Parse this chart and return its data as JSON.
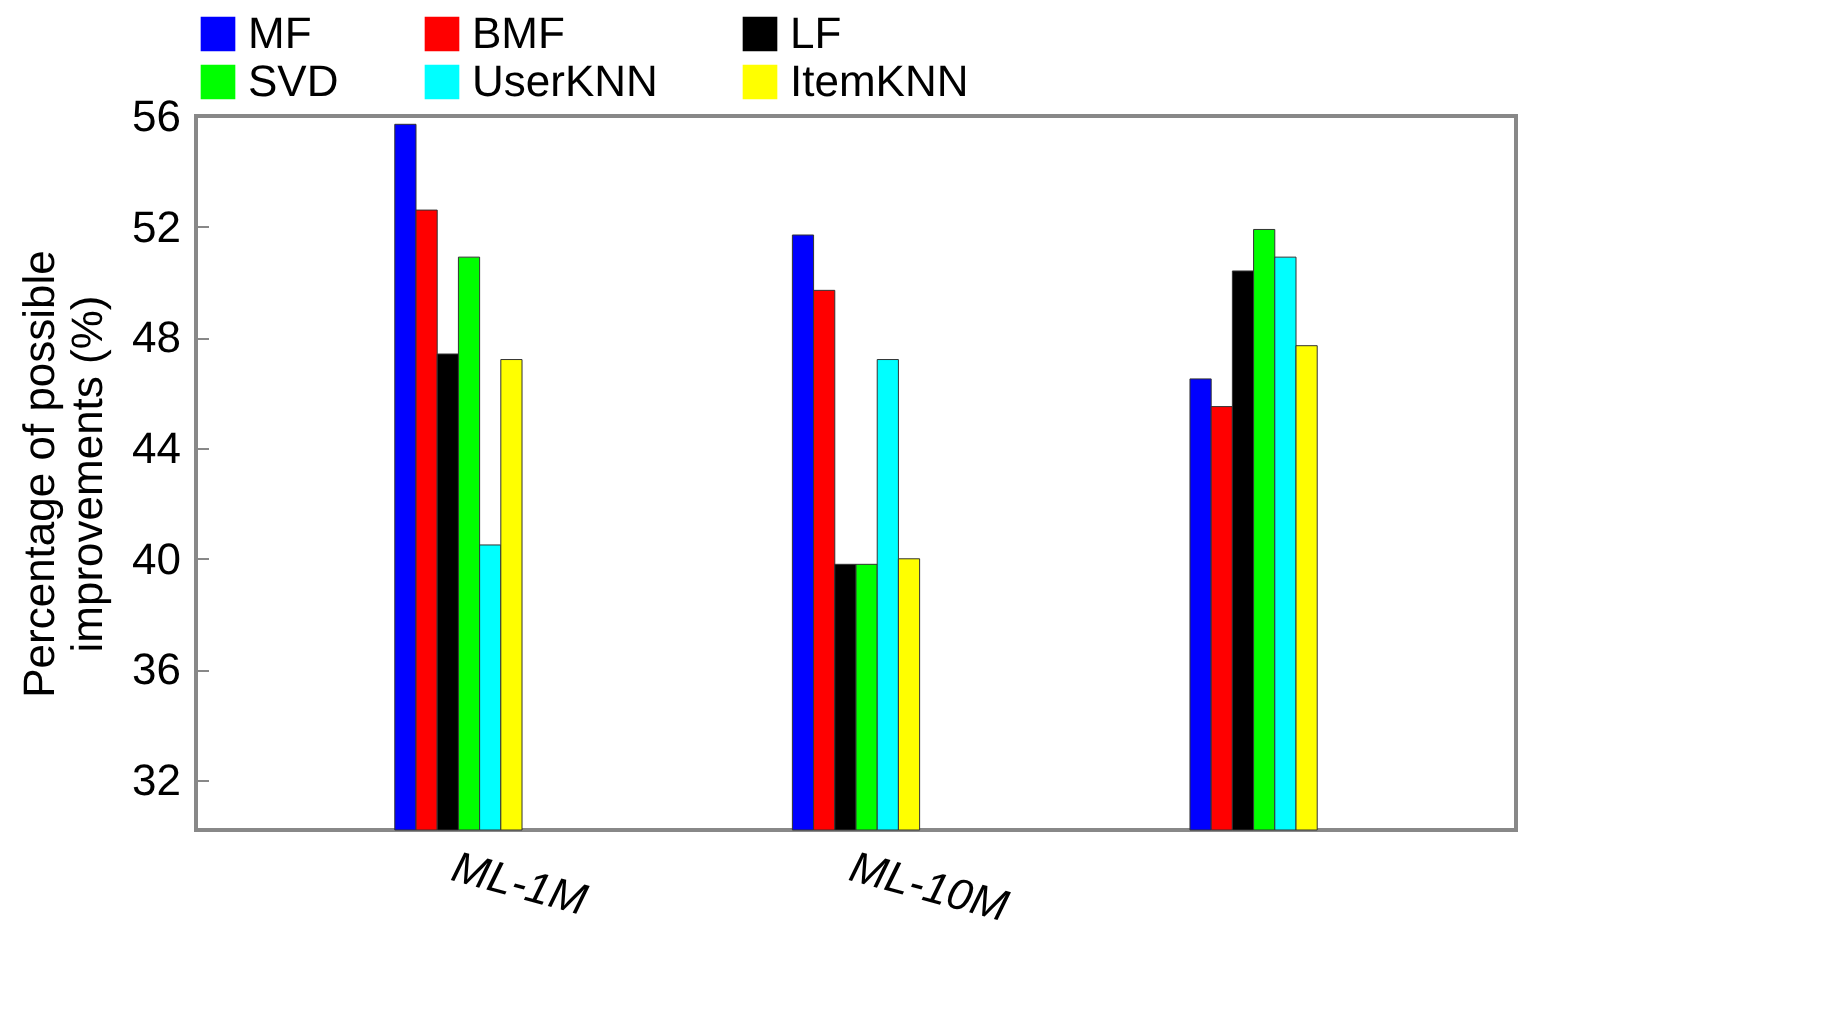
{
  "chart_data": {
    "type": "bar",
    "ylabel": "Percentage of possible\nimprovements (%)",
    "categories": [
      "ML-1M",
      "ML-10M",
      null
    ],
    "series": [
      {
        "name": "MF",
        "color": "#0000ff",
        "values": [
          55.7,
          51.7,
          46.5
        ]
      },
      {
        "name": "BMF",
        "color": "#ff0000",
        "values": [
          52.6,
          49.7,
          45.5
        ]
      },
      {
        "name": "LF",
        "color": "#000000",
        "values": [
          47.4,
          39.8,
          50.4
        ]
      },
      {
        "name": "SVD",
        "color": "#00ff00",
        "values": [
          50.9,
          39.8,
          51.9
        ]
      },
      {
        "name": "UserKNN",
        "color": "#00ffff",
        "values": [
          40.5,
          47.2,
          50.9
        ]
      },
      {
        "name": "ItemKNN",
        "color": "#ffff00",
        "values": [
          47.2,
          40.0,
          47.7
        ]
      }
    ],
    "ylim": [
      30.2,
      56
    ],
    "yticks": [
      32,
      36,
      40,
      44,
      48,
      52,
      56
    ],
    "grid": false,
    "legend": "top"
  }
}
